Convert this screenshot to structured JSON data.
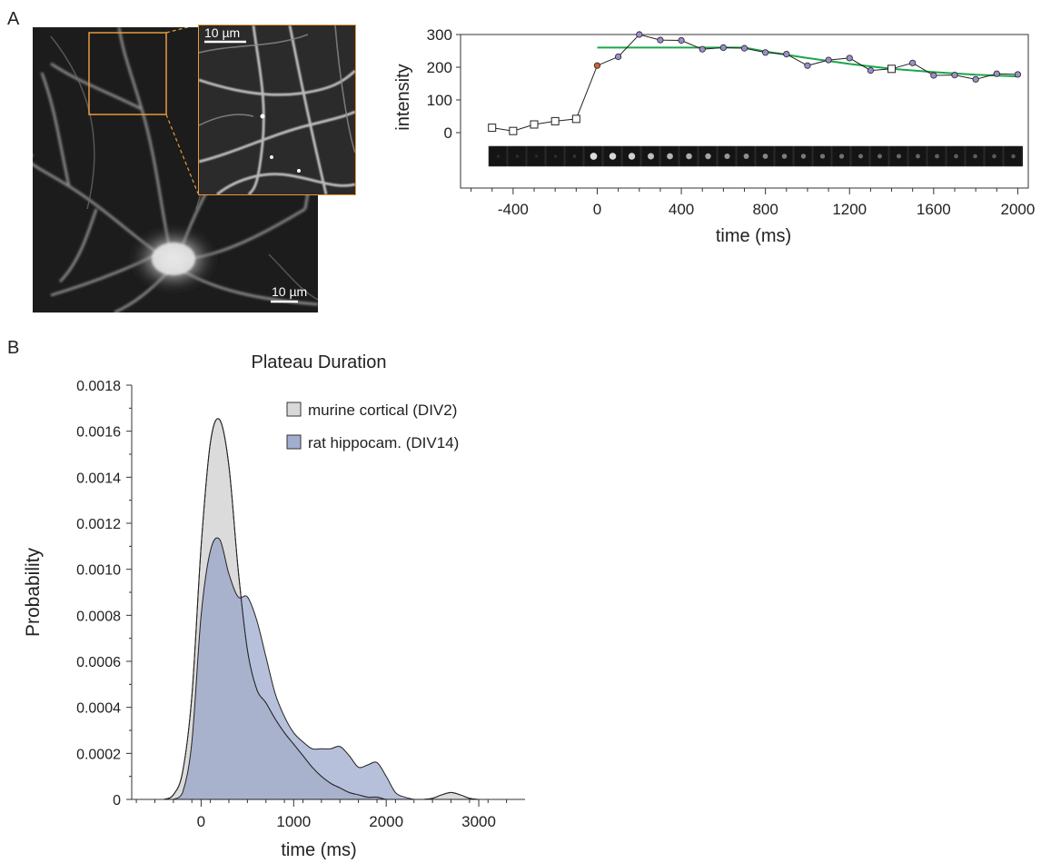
{
  "panels": {
    "a": "A",
    "b": "B"
  },
  "micrograph": {
    "scalebar_main": "10 µm",
    "scalebar_inset": "10 µm"
  },
  "colors": {
    "fit_line": "#1aa64a",
    "inset_border": "#e79a3c",
    "murine_fill": "#d9d9d9",
    "rat_fill": "#8a9ac4",
    "event_marker": "#9a8fca",
    "first_point": "#c8673a"
  },
  "chart_data": [
    {
      "type": "line",
      "title": "",
      "xlabel": "time (ms)",
      "ylabel": "intensity",
      "xlim": [
        -650,
        2050
      ],
      "ylim": [
        -50,
        350
      ],
      "x_ticks": [
        -400,
        0,
        400,
        800,
        1200,
        1600,
        2000
      ],
      "y_ticks": [
        0,
        100,
        200,
        300
      ],
      "series": [
        {
          "marker": "square",
          "x": [
            -500,
            -400,
            -300,
            -200,
            -100
          ],
          "y": [
            15,
            5,
            25,
            35,
            42
          ]
        },
        {
          "marker": "circle",
          "x": [
            0,
            100,
            200,
            300,
            400,
            500,
            600,
            700,
            800,
            900,
            1000,
            1100,
            1200,
            1300,
            1400,
            1500,
            1600,
            1700,
            1800,
            1900,
            2000
          ],
          "y": [
            205,
            232,
            300,
            283,
            282,
            255,
            260,
            258,
            245,
            240,
            205,
            222,
            228,
            190,
            195,
            213,
            175,
            176,
            163,
            180,
            178
          ]
        },
        {
          "style": "fit",
          "x": [
            0,
            200,
            400,
            600,
            700,
            800,
            1000,
            1200,
            1400,
            1600,
            1800,
            2000
          ],
          "y": [
            260,
            260,
            260,
            260,
            260,
            248,
            228,
            210,
            195,
            185,
            177,
            172
          ]
        }
      ],
      "frame_strip_intensity": [
        0.1,
        0.12,
        0.1,
        0.12,
        0.15,
        0.95,
        0.92,
        0.88,
        0.8,
        0.75,
        0.72,
        0.68,
        0.62,
        0.58,
        0.55,
        0.5,
        0.48,
        0.46,
        0.44,
        0.42,
        0.4,
        0.4,
        0.38,
        0.36,
        0.35,
        0.34,
        0.33,
        0.32
      ]
    },
    {
      "type": "area",
      "title": "Plateau Duration",
      "xlabel": "time (ms)",
      "ylabel": "Probability",
      "xlim": [
        -750,
        3500
      ],
      "ylim": [
        0,
        0.0018
      ],
      "x_ticks": [
        0,
        1000,
        2000,
        3000
      ],
      "y_ticks": [
        "0",
        "0.0002",
        "0.0004",
        "0.0006",
        "0.0008",
        "0.0010",
        "0.0012",
        "0.0014",
        "0.0016",
        "0.0018"
      ],
      "legend_position": "top-right",
      "series": [
        {
          "name": "murine cortical (DIV2)",
          "x": [
            -400,
            -300,
            -200,
            -100,
            0,
            100,
            200,
            300,
            400,
            500,
            600,
            700,
            800,
            900,
            1000,
            1100,
            1200,
            1300,
            1400,
            1500,
            1600,
            1700,
            1800,
            1900,
            2000,
            2100,
            2200,
            2300,
            2400,
            2500,
            2600,
            2700,
            2800,
            2900,
            3000
          ],
          "y": [
            0,
            2e-05,
            0.00012,
            0.00045,
            0.0011,
            0.00155,
            0.00165,
            0.00145,
            0.001,
            0.00065,
            0.00048,
            0.00042,
            0.00035,
            0.00029,
            0.00024,
            0.00019,
            0.00014,
            0.0001,
            7e-05,
            5e-05,
            3e-05,
            2e-05,
            1e-05,
            1e-05,
            0,
            0,
            0,
            0,
            0,
            5e-06,
            2e-05,
            3e-05,
            2e-05,
            5e-06,
            0
          ]
        },
        {
          "name": "rat hippocam. (DIV14)",
          "x": [
            -300,
            -200,
            -100,
            0,
            100,
            200,
            300,
            400,
            500,
            600,
            700,
            800,
            900,
            1000,
            1100,
            1200,
            1300,
            1400,
            1500,
            1600,
            1700,
            1800,
            1900,
            2000,
            2100,
            2200,
            2300
          ],
          "y": [
            0,
            3e-05,
            0.00025,
            0.0008,
            0.00108,
            0.00113,
            0.00098,
            0.00088,
            0.00088,
            0.00078,
            0.00062,
            0.00046,
            0.00036,
            0.00029,
            0.00025,
            0.00022,
            0.00022,
            0.00022,
            0.00023,
            0.00019,
            0.00014,
            0.00015,
            0.00016,
            0.0001,
            3e-05,
            1e-05,
            0
          ]
        }
      ]
    }
  ]
}
